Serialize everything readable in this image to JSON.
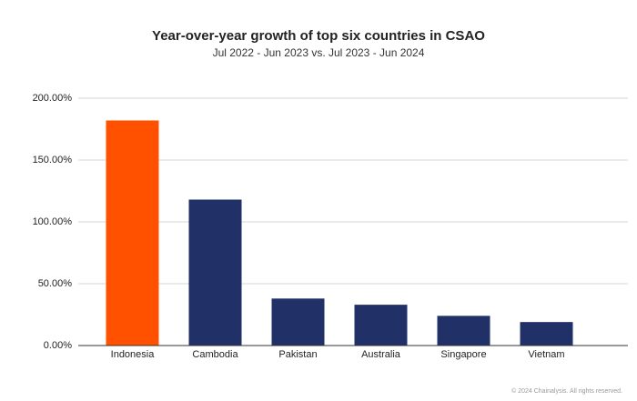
{
  "chart_data": {
    "type": "bar",
    "title": "Year-over-year growth of top six countries in CSAO",
    "subtitle": "Jul 2022 - Jun 2023 vs. Jul 2023 - Jun 2024",
    "categories": [
      "Indonesia",
      "Cambodia",
      "Pakistan",
      "Australia",
      "Singapore",
      "Vietnam"
    ],
    "values": [
      182,
      118,
      38,
      33,
      24,
      19
    ],
    "colors": [
      "#ff5100",
      "#213067",
      "#213067",
      "#213067",
      "#213067",
      "#213067"
    ],
    "ylim": [
      0,
      200
    ],
    "yticks": [
      {
        "value": 0,
        "label": "0.00%"
      },
      {
        "value": 50,
        "label": "50.00%"
      },
      {
        "value": 100,
        "label": "100.00%"
      },
      {
        "value": 150,
        "label": "150.00%"
      },
      {
        "value": 200,
        "label": "200.00%"
      }
    ],
    "grid": true,
    "footnote": "© 2024 Chainalysis. All rights reserved."
  }
}
